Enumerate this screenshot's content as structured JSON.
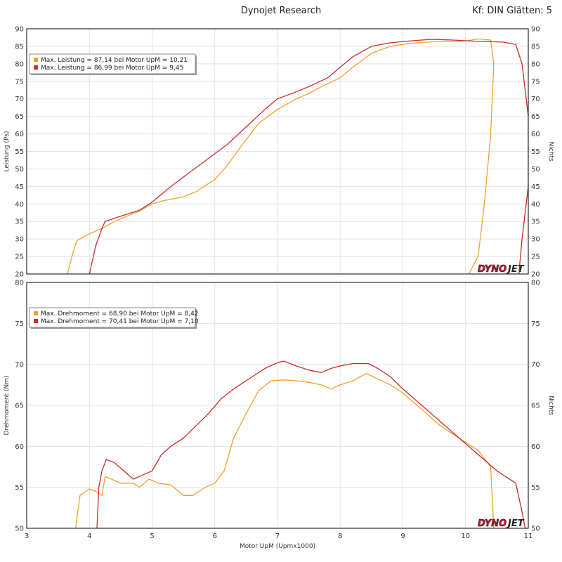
{
  "header": {
    "title": "Dynojet Research",
    "correction": "Kf: DIN Glätten: 5"
  },
  "logo": {
    "text_a": "DYNO",
    "text_b": "JET"
  },
  "colors": {
    "run1": "#f0a030",
    "run2": "#cc2b2b",
    "grid": "#e3e3e3",
    "frame": "#000000"
  },
  "chart_data": [
    {
      "type": "line",
      "id": "power",
      "ylabel": "Leistung (Ps)",
      "ylabel_right": "Nichts",
      "xlim": [
        3,
        11
      ],
      "ylim": [
        20,
        90
      ],
      "yticks": [
        20,
        25,
        30,
        35,
        40,
        45,
        50,
        55,
        60,
        65,
        70,
        75,
        80,
        85,
        90
      ],
      "legend_position": "top-left",
      "series": [
        {
          "name": "Max. Leistung = 87,14 bei Motor UpM = 10,21",
          "color": "#f0a030",
          "points": [
            [
              3.65,
              20
            ],
            [
              3.72,
              25
            ],
            [
              3.8,
              29.5
            ],
            [
              4.0,
              31.5
            ],
            [
              4.2,
              33
            ],
            [
              4.4,
              35
            ],
            [
              4.6,
              36.5
            ],
            [
              4.8,
              38
            ],
            [
              5.0,
              40
            ],
            [
              5.2,
              41
            ],
            [
              5.5,
              42
            ],
            [
              5.7,
              43.5
            ],
            [
              6.0,
              47
            ],
            [
              6.2,
              51
            ],
            [
              6.4,
              56
            ],
            [
              6.7,
              63
            ],
            [
              7.0,
              67
            ],
            [
              7.3,
              70
            ],
            [
              7.5,
              71.5
            ],
            [
              7.7,
              73.5
            ],
            [
              8.0,
              76
            ],
            [
              8.2,
              79
            ],
            [
              8.5,
              83
            ],
            [
              8.8,
              85
            ],
            [
              9.1,
              85.8
            ],
            [
              9.5,
              86.3
            ],
            [
              10.0,
              86.5
            ],
            [
              10.2,
              87.1
            ],
            [
              10.4,
              86.8
            ],
            [
              10.45,
              80
            ],
            [
              10.4,
              60
            ],
            [
              10.3,
              40
            ],
            [
              10.2,
              25
            ],
            [
              10.05,
              20
            ]
          ]
        },
        {
          "name": "Max. Leistung = 86,99 bei Motor UpM = 9,45",
          "color": "#cc2b2b",
          "points": [
            [
              4.0,
              20
            ],
            [
              4.1,
              28
            ],
            [
              4.2,
              33
            ],
            [
              4.25,
              35
            ],
            [
              4.5,
              36.5
            ],
            [
              4.8,
              38.2
            ],
            [
              5.0,
              40.5
            ],
            [
              5.3,
              45
            ],
            [
              5.6,
              49
            ],
            [
              5.9,
              53
            ],
            [
              6.2,
              57
            ],
            [
              6.5,
              62
            ],
            [
              6.8,
              67
            ],
            [
              7.0,
              70
            ],
            [
              7.3,
              72
            ],
            [
              7.5,
              73.5
            ],
            [
              7.8,
              76
            ],
            [
              8.0,
              79
            ],
            [
              8.2,
              82
            ],
            [
              8.5,
              85
            ],
            [
              8.8,
              86
            ],
            [
              9.1,
              86.5
            ],
            [
              9.45,
              87
            ],
            [
              9.8,
              86.8
            ],
            [
              10.2,
              86.4
            ],
            [
              10.6,
              86.2
            ],
            [
              10.8,
              85.5
            ],
            [
              10.9,
              80
            ],
            [
              11.0,
              65
            ],
            [
              11.0,
              45
            ],
            [
              10.9,
              30
            ],
            [
              10.85,
              20
            ]
          ]
        }
      ]
    },
    {
      "type": "line",
      "id": "torque",
      "ylabel": "Drehmoment (Nm)",
      "ylabel_right": "Nichts",
      "xlabel": "Motor UpM (Upmx1000)",
      "xlim": [
        3,
        11
      ],
      "ylim": [
        50,
        80
      ],
      "xticks": [
        3,
        4,
        5,
        6,
        7,
        8,
        9,
        10,
        11
      ],
      "yticks": [
        50,
        55,
        60,
        65,
        70,
        75,
        80
      ],
      "legend_position": "top-left",
      "series": [
        {
          "name": "Max. Drehmoment = 68,90 bei Motor UpM = 8,42",
          "color": "#f0a030",
          "points": [
            [
              3.78,
              50
            ],
            [
              3.85,
              54
            ],
            [
              4.0,
              54.8
            ],
            [
              4.1,
              54.5
            ],
            [
              4.2,
              54
            ],
            [
              4.25,
              56.3
            ],
            [
              4.35,
              56
            ],
            [
              4.5,
              55.5
            ],
            [
              4.7,
              55.5
            ],
            [
              4.8,
              55
            ],
            [
              4.95,
              56
            ],
            [
              5.1,
              55.5
            ],
            [
              5.3,
              55.3
            ],
            [
              5.5,
              54
            ],
            [
              5.65,
              54
            ],
            [
              5.85,
              55
            ],
            [
              6.0,
              55.5
            ],
            [
              6.15,
              57
            ],
            [
              6.3,
              61
            ],
            [
              6.5,
              64
            ],
            [
              6.7,
              66.8
            ],
            [
              6.9,
              68
            ],
            [
              7.1,
              68.1
            ],
            [
              7.3,
              68
            ],
            [
              7.5,
              67.8
            ],
            [
              7.7,
              67.5
            ],
            [
              7.85,
              67
            ],
            [
              8.0,
              67.5
            ],
            [
              8.2,
              68
            ],
            [
              8.42,
              68.9
            ],
            [
              8.6,
              68.2
            ],
            [
              8.8,
              67.5
            ],
            [
              9.0,
              66.5
            ],
            [
              9.3,
              64.5
            ],
            [
              9.6,
              62.5
            ],
            [
              9.9,
              61
            ],
            [
              10.2,
              59.5
            ],
            [
              10.4,
              57.5
            ],
            [
              10.45,
              50
            ]
          ]
        },
        {
          "name": "Max. Drehmoment = 70,41 bei Motor UpM = 7,10",
          "color": "#cc2b2b",
          "points": [
            [
              4.12,
              50
            ],
            [
              4.15,
              55
            ],
            [
              4.2,
              57
            ],
            [
              4.27,
              58.4
            ],
            [
              4.4,
              58
            ],
            [
              4.55,
              57
            ],
            [
              4.7,
              56
            ],
            [
              4.85,
              56.5
            ],
            [
              5.0,
              57
            ],
            [
              5.15,
              59
            ],
            [
              5.3,
              60
            ],
            [
              5.5,
              61
            ],
            [
              5.7,
              62.5
            ],
            [
              5.9,
              64
            ],
            [
              6.1,
              65.8
            ],
            [
              6.3,
              67
            ],
            [
              6.5,
              68
            ],
            [
              6.8,
              69.5
            ],
            [
              7.0,
              70.2
            ],
            [
              7.1,
              70.4
            ],
            [
              7.3,
              69.8
            ],
            [
              7.5,
              69.3
            ],
            [
              7.7,
              69
            ],
            [
              7.85,
              69.5
            ],
            [
              8.0,
              69.8
            ],
            [
              8.2,
              70.1
            ],
            [
              8.45,
              70.1
            ],
            [
              8.6,
              69.5
            ],
            [
              8.8,
              68.5
            ],
            [
              9.0,
              67
            ],
            [
              9.3,
              65
            ],
            [
              9.6,
              63
            ],
            [
              9.9,
              61
            ],
            [
              10.2,
              59
            ],
            [
              10.5,
              57
            ],
            [
              10.8,
              55.5
            ],
            [
              10.9,
              52
            ],
            [
              10.95,
              50
            ]
          ]
        }
      ]
    }
  ]
}
